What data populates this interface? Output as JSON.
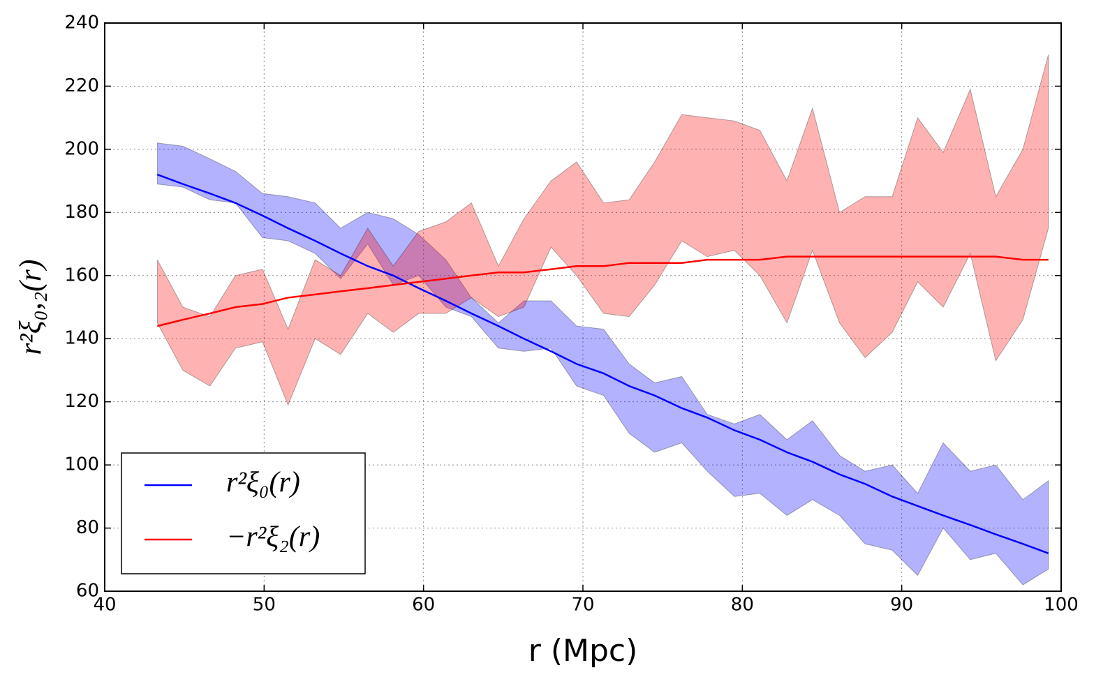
{
  "chart_data": {
    "type": "line",
    "xlabel": "r (Mpc)",
    "ylabel": "r²ξ₀,₂(r)",
    "x": [
      43.3,
      44.9,
      46.6,
      48.2,
      49.9,
      51.5,
      53.2,
      54.8,
      56.5,
      58.1,
      59.7,
      61.4,
      63.0,
      64.7,
      66.3,
      68.0,
      69.6,
      71.3,
      72.9,
      74.5,
      76.2,
      77.8,
      79.5,
      81.1,
      82.8,
      84.4,
      86.1,
      87.7,
      89.4,
      91.0,
      92.6,
      94.3,
      95.9,
      97.6,
      99.2
    ],
    "series": [
      {
        "name": "r²ξ₀(r)",
        "color": "#0000ff",
        "values": [
          192,
          189,
          186,
          183,
          179,
          175,
          171,
          167,
          163,
          160,
          156,
          152,
          148,
          144,
          140,
          136,
          132,
          129,
          125,
          122,
          118,
          115,
          111,
          108,
          104,
          101,
          97,
          94,
          90,
          87,
          84,
          81,
          78,
          75,
          72
        ],
        "upper": [
          202,
          201,
          197,
          193,
          186,
          185,
          183,
          175,
          180,
          178,
          173,
          165,
          153,
          145,
          152,
          152,
          144,
          143,
          132,
          126,
          128,
          116,
          113,
          116,
          108,
          114,
          103,
          98,
          100,
          91,
          107,
          98,
          100,
          89,
          95
        ],
        "lower": [
          189,
          188,
          184,
          183,
          172,
          171,
          167,
          159,
          170,
          157,
          160,
          150,
          147,
          137,
          136,
          137,
          125,
          122,
          110,
          104,
          107,
          98,
          90,
          91,
          84,
          89,
          84,
          75,
          73,
          65,
          80,
          70,
          72,
          62,
          67
        ]
      },
      {
        "name": "−r²ξ₂(r)",
        "color": "#ff0000",
        "values": [
          144,
          146,
          148,
          150,
          151,
          153,
          154,
          155,
          156,
          157,
          158,
          159,
          160,
          161,
          161,
          162,
          163,
          163,
          164,
          164,
          164,
          165,
          165,
          165,
          166,
          166,
          166,
          166,
          166,
          166,
          166,
          166,
          166,
          165,
          165
        ],
        "upper": [
          165,
          150,
          147,
          160,
          162,
          143,
          165,
          160,
          175,
          163,
          174,
          177,
          183,
          163,
          178,
          190,
          196,
          183,
          184,
          196,
          211,
          210,
          209,
          206,
          190,
          213,
          180,
          185,
          185,
          210,
          199,
          219,
          185,
          200,
          230
        ],
        "lower": [
          145,
          130,
          125,
          137,
          139,
          119,
          140,
          135,
          148,
          142,
          148,
          148,
          153,
          147,
          150,
          169,
          160,
          148,
          147,
          157,
          171,
          166,
          168,
          160,
          145,
          168,
          145,
          134,
          142,
          158,
          150,
          167,
          133,
          146,
          175
        ]
      }
    ],
    "xlim": [
      40,
      100
    ],
    "xticks": [
      40,
      50,
      60,
      70,
      80,
      90,
      100
    ],
    "ylim": [
      60,
      240
    ],
    "yticks": [
      60,
      80,
      100,
      120,
      140,
      160,
      180,
      200,
      220,
      240
    ],
    "grid": true,
    "legend": "lower left"
  }
}
